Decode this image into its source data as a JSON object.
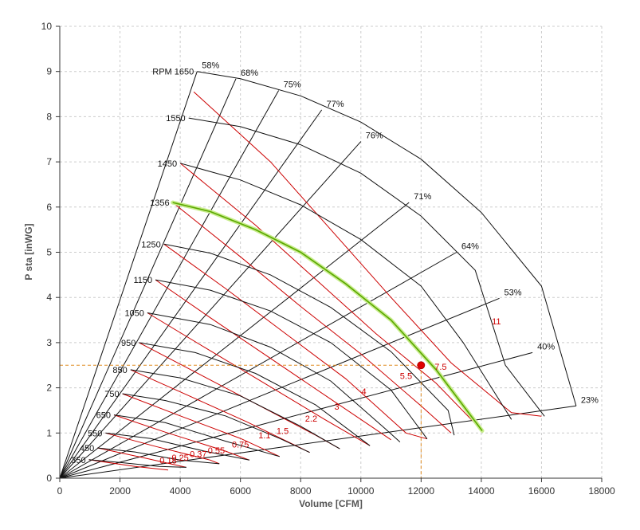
{
  "chart_data": {
    "type": "line",
    "title": "",
    "xlabel": "Volume [CFM]",
    "ylabel": "P sta [inWG]",
    "xlim": [
      0,
      18000
    ],
    "ylim": [
      0,
      10
    ],
    "x_ticks": [
      "0",
      "2000",
      "4000",
      "6000",
      "8000",
      "10000",
      "12000",
      "14000",
      "16000",
      "18000"
    ],
    "y_ticks": [
      "0",
      "1",
      "2",
      "3",
      "4",
      "5",
      "6",
      "7",
      "8",
      "9",
      "10"
    ],
    "grid": true,
    "rpm_prefix": "RPM",
    "rpm_curves": [
      {
        "label": "1650",
        "points": [
          [
            4560,
            9.0
          ],
          [
            6000,
            8.84
          ],
          [
            8000,
            8.46
          ],
          [
            10000,
            7.88
          ],
          [
            12000,
            7.06
          ],
          [
            14000,
            5.88
          ],
          [
            16000,
            4.25
          ],
          [
            17150,
            1.6
          ]
        ]
      },
      {
        "label": "1550",
        "points": [
          [
            4280,
            7.97
          ],
          [
            6000,
            7.78
          ],
          [
            8000,
            7.38
          ],
          [
            10000,
            6.75
          ],
          [
            12000,
            5.8
          ],
          [
            13800,
            4.6
          ],
          [
            14800,
            2.5
          ],
          [
            16100,
            1.37
          ]
        ]
      },
      {
        "label": "1450",
        "points": [
          [
            4000,
            6.97
          ],
          [
            6000,
            6.6
          ],
          [
            8000,
            6.05
          ],
          [
            10000,
            5.28
          ],
          [
            12000,
            4.25
          ],
          [
            13400,
            3.0
          ],
          [
            15000,
            1.3
          ]
        ]
      },
      {
        "label": "1356",
        "points": [
          [
            3750,
            6.1
          ],
          [
            5000,
            5.9
          ],
          [
            6500,
            5.5
          ],
          [
            8000,
            5.0
          ],
          [
            9500,
            4.3
          ],
          [
            11000,
            3.5
          ],
          [
            12500,
            2.4
          ],
          [
            14030,
            1.05
          ]
        ]
      },
      {
        "label": "1250",
        "points": [
          [
            3460,
            5.18
          ],
          [
            5000,
            4.98
          ],
          [
            7000,
            4.5
          ],
          [
            9000,
            3.78
          ],
          [
            11000,
            2.8
          ],
          [
            12900,
            1.5
          ],
          [
            13100,
            0.95
          ]
        ]
      },
      {
        "label": "1150",
        "points": [
          [
            3180,
            4.39
          ],
          [
            5000,
            4.16
          ],
          [
            7000,
            3.7
          ],
          [
            9000,
            3.0
          ],
          [
            11000,
            1.95
          ],
          [
            12200,
            0.87
          ]
        ]
      },
      {
        "label": "1050",
        "points": [
          [
            2910,
            3.66
          ],
          [
            5000,
            3.4
          ],
          [
            7000,
            2.9
          ],
          [
            9000,
            2.15
          ],
          [
            10800,
            1.1
          ],
          [
            11300,
            0.8
          ]
        ]
      },
      {
        "label": "950",
        "points": [
          [
            2630,
            3.0
          ],
          [
            4500,
            2.78
          ],
          [
            6500,
            2.32
          ],
          [
            8500,
            1.62
          ],
          [
            10300,
            0.72
          ]
        ]
      },
      {
        "label": "850",
        "points": [
          [
            2350,
            2.4
          ],
          [
            4000,
            2.22
          ],
          [
            6000,
            1.82
          ],
          [
            8000,
            1.15
          ],
          [
            9300,
            0.65
          ]
        ]
      },
      {
        "label": "750",
        "points": [
          [
            2080,
            1.87
          ],
          [
            3500,
            1.72
          ],
          [
            5500,
            1.38
          ],
          [
            7300,
            0.88
          ],
          [
            8300,
            0.57
          ]
        ]
      },
      {
        "label": "650",
        "points": [
          [
            1800,
            1.4
          ],
          [
            3500,
            1.23
          ],
          [
            5500,
            0.82
          ],
          [
            7300,
            0.48
          ]
        ]
      },
      {
        "label": "550",
        "points": [
          [
            1520,
            1.0
          ],
          [
            3000,
            0.88
          ],
          [
            4800,
            0.6
          ],
          [
            6300,
            0.4
          ]
        ]
      },
      {
        "label": "450",
        "points": [
          [
            1250,
            0.67
          ],
          [
            2500,
            0.58
          ],
          [
            4000,
            0.4
          ],
          [
            5300,
            0.32
          ]
        ]
      },
      {
        "label": "350",
        "points": [
          [
            970,
            0.41
          ],
          [
            2000,
            0.35
          ],
          [
            3300,
            0.26
          ],
          [
            4200,
            0.24
          ]
        ]
      },
      {
        "label": "",
        "points": [
          [
            0,
            0
          ],
          [
            1000,
            0.0
          ],
          [
            2000,
            0.0
          ]
        ]
      }
    ],
    "efficiency_rays": [
      {
        "label": "58%",
        "end": [
          4560,
          9.0
        ]
      },
      {
        "label": "68%",
        "end": [
          5850,
          8.84
        ]
      },
      {
        "label": "75%",
        "end": [
          7270,
          8.58
        ]
      },
      {
        "label": "77%",
        "end": [
          8700,
          8.15
        ]
      },
      {
        "label": "76%",
        "end": [
          10000,
          7.45
        ]
      },
      {
        "label": "71%",
        "end": [
          11600,
          6.1
        ]
      },
      {
        "label": "64%",
        "end": [
          13180,
          5.0
        ]
      },
      {
        "label": "53%",
        "end": [
          14600,
          3.98
        ]
      },
      {
        "label": "40%",
        "end": [
          15700,
          2.78
        ]
      },
      {
        "label": "23%",
        "end": [
          17150,
          1.6
        ]
      }
    ],
    "power_curves": [
      {
        "label": "11",
        "points": [
          [
            4450,
            8.55
          ],
          [
            7000,
            7.0
          ],
          [
            9000,
            5.5
          ],
          [
            11000,
            4.0
          ],
          [
            13000,
            2.55
          ],
          [
            15000,
            1.45
          ],
          [
            16000,
            1.37
          ]
        ],
        "label_at": [
          14500,
          3.4
        ]
      },
      {
        "label": "7.5",
        "points": [
          [
            4000,
            6.97
          ],
          [
            6500,
            5.6
          ],
          [
            8500,
            4.4
          ],
          [
            10500,
            3.2
          ],
          [
            12500,
            2.1
          ],
          [
            14030,
            1.05
          ]
        ],
        "label_at": [
          12650,
          2.4
        ]
      },
      {
        "label": "5.5",
        "points": [
          [
            3750,
            6.1
          ],
          [
            6000,
            4.9
          ],
          [
            8000,
            3.8
          ],
          [
            10000,
            2.75
          ],
          [
            12000,
            1.6
          ],
          [
            13000,
            1.0
          ]
        ],
        "label_at": [
          11500,
          2.2
        ]
      },
      {
        "label": "4",
        "points": [
          [
            3460,
            5.18
          ],
          [
            5500,
            4.2
          ],
          [
            7500,
            3.2
          ],
          [
            9500,
            2.2
          ],
          [
            11500,
            1.0
          ],
          [
            12200,
            0.87
          ]
        ],
        "label_at": [
          10100,
          1.85
        ]
      },
      {
        "label": "3",
        "points": [
          [
            3180,
            4.39
          ],
          [
            5000,
            3.55
          ],
          [
            7000,
            2.65
          ],
          [
            9000,
            1.75
          ],
          [
            11000,
            0.85
          ]
        ],
        "label_at": [
          9200,
          1.52
        ]
      },
      {
        "label": "2.2",
        "points": [
          [
            2910,
            3.66
          ],
          [
            4800,
            2.9
          ],
          [
            6800,
            2.1
          ],
          [
            8800,
            1.3
          ],
          [
            10300,
            0.72
          ]
        ],
        "label_at": [
          8350,
          1.25
        ]
      },
      {
        "label": "1.5",
        "points": [
          [
            2630,
            3.0
          ],
          [
            4500,
            2.35
          ],
          [
            6500,
            1.65
          ],
          [
            8500,
            0.95
          ],
          [
            9300,
            0.65
          ]
        ],
        "label_at": [
          7400,
          0.98
        ]
      },
      {
        "label": "1.1",
        "points": [
          [
            2350,
            2.4
          ],
          [
            4200,
            1.85
          ],
          [
            6200,
            1.25
          ],
          [
            8300,
            0.57
          ]
        ],
        "label_at": [
          6800,
          0.88
        ]
      },
      {
        "label": "0.75",
        "points": [
          [
            2080,
            1.87
          ],
          [
            4000,
            1.38
          ],
          [
            6000,
            0.88
          ],
          [
            7300,
            0.48
          ]
        ],
        "label_at": [
          6000,
          0.68
        ]
      },
      {
        "label": "0.55",
        "points": [
          [
            1800,
            1.4
          ],
          [
            3500,
            1.02
          ],
          [
            5500,
            0.6
          ],
          [
            6300,
            0.4
          ]
        ],
        "label_at": [
          5200,
          0.55
        ]
      },
      {
        "label": "0.37",
        "points": [
          [
            1520,
            1.0
          ],
          [
            3200,
            0.7
          ],
          [
            5000,
            0.4
          ],
          [
            5300,
            0.32
          ]
        ],
        "label_at": [
          4600,
          0.47
        ]
      },
      {
        "label": "0.25",
        "points": [
          [
            1250,
            0.67
          ],
          [
            2800,
            0.45
          ],
          [
            4200,
            0.24
          ]
        ],
        "label_at": [
          4000,
          0.39
        ]
      },
      {
        "label": "0.18",
        "points": [
          [
            970,
            0.41
          ],
          [
            2500,
            0.26
          ],
          [
            3600,
            0.18
          ]
        ],
        "label_at": [
          3600,
          0.33
        ]
      }
    ],
    "highlighted_curve": "1356",
    "operating_point": {
      "x": 12000,
      "y": 2.5
    }
  },
  "colors": {
    "grid": "#cccccc",
    "axis": "#333333",
    "rpm_line": "#111111",
    "power_line": "#cc0000",
    "highlight_fill": "#c8ec8c",
    "highlight_stroke": "#5aa800",
    "crosshair": "#e08a1e",
    "operating_point": "#e00000"
  }
}
